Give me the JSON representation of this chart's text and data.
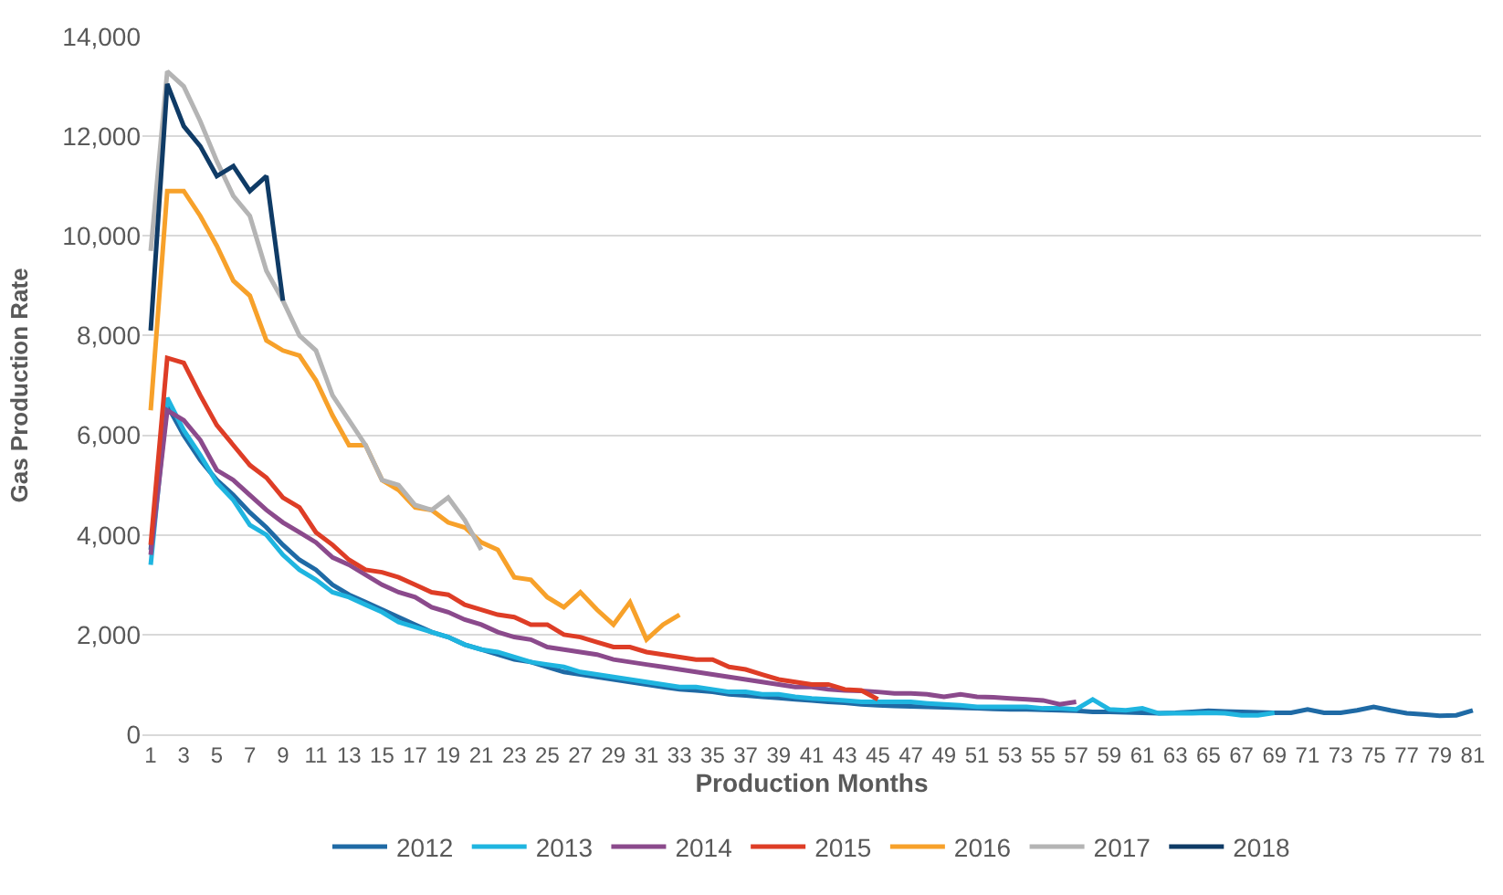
{
  "chart_data": {
    "type": "line",
    "xlabel": "Production Months",
    "ylabel": "Gas Production Rate",
    "xlim": [
      0.5,
      81.5
    ],
    "xticks": [
      1,
      3,
      5,
      7,
      9,
      11,
      13,
      15,
      17,
      19,
      21,
      23,
      25,
      27,
      29,
      31,
      33,
      35,
      37,
      39,
      41,
      43,
      45,
      47,
      49,
      51,
      53,
      55,
      57,
      59,
      61,
      63,
      65,
      67,
      69,
      71,
      73,
      75,
      77,
      79,
      81
    ],
    "ylim": [
      0,
      14000
    ],
    "yticks": [
      0,
      {
        "value": 2000,
        "label": "2,000"
      },
      {
        "value": 4000,
        "label": "4,000"
      },
      {
        "value": 6000,
        "label": "6,000"
      },
      {
        "value": 8000,
        "label": "8,000"
      },
      {
        "value": 10000,
        "label": "10,000"
      },
      {
        "value": 12000,
        "label": "12,000"
      },
      {
        "value": 14000,
        "label": "14,000"
      }
    ],
    "grid": "y",
    "legend": "bottom",
    "marker": "none",
    "line_style": "solid",
    "series": [
      {
        "name": "2012",
        "color": "#1f6aa5",
        "x": [
          1,
          2,
          3,
          4,
          5,
          6,
          7,
          8,
          9,
          10,
          11,
          12,
          13,
          14,
          15,
          16,
          17,
          18,
          19,
          20,
          21,
          22,
          23,
          24,
          25,
          26,
          27,
          28,
          29,
          30,
          31,
          32,
          33,
          34,
          35,
          36,
          37,
          38,
          39,
          40,
          41,
          42,
          43,
          44,
          45,
          46,
          47,
          48,
          49,
          50,
          51,
          52,
          53,
          54,
          55,
          56,
          57,
          58,
          59,
          60,
          61,
          62,
          63,
          64,
          65,
          66,
          67,
          68,
          69,
          70,
          71,
          72,
          73,
          74,
          75,
          76,
          77,
          78,
          79,
          80,
          81
        ],
        "values": [
          3700,
          6600,
          6000,
          5500,
          5100,
          4800,
          4450,
          4150,
          3800,
          3500,
          3300,
          3000,
          2800,
          2650,
          2500,
          2350,
          2200,
          2050,
          1950,
          1800,
          1700,
          1600,
          1500,
          1450,
          1350,
          1250,
          1200,
          1150,
          1100,
          1050,
          1000,
          950,
          900,
          880,
          850,
          800,
          780,
          750,
          730,
          700,
          680,
          650,
          630,
          600,
          580,
          570,
          560,
          550,
          540,
          530,
          520,
          510,
          500,
          500,
          490,
          480,
          470,
          450,
          450,
          440,
          430,
          420,
          430,
          450,
          470,
          460,
          450,
          440,
          430,
          430,
          500,
          430,
          430,
          480,
          550,
          480,
          420,
          400,
          370,
          380,
          480
        ]
      },
      {
        "name": "2013",
        "color": "#1fb5e0",
        "x": [
          1,
          2,
          3,
          4,
          5,
          6,
          7,
          8,
          9,
          10,
          11,
          12,
          13,
          14,
          15,
          16,
          17,
          18,
          19,
          20,
          21,
          22,
          23,
          24,
          25,
          26,
          27,
          28,
          29,
          30,
          31,
          32,
          33,
          34,
          35,
          36,
          37,
          38,
          39,
          40,
          41,
          42,
          43,
          44,
          45,
          46,
          47,
          48,
          49,
          50,
          51,
          52,
          53,
          54,
          55,
          56,
          57,
          58,
          59,
          60,
          61,
          62,
          63,
          64,
          65,
          66,
          67,
          68,
          69
        ],
        "values": [
          3400,
          6750,
          6100,
          5600,
          5050,
          4700,
          4200,
          4000,
          3600,
          3300,
          3100,
          2850,
          2750,
          2600,
          2450,
          2250,
          2150,
          2050,
          1950,
          1800,
          1700,
          1650,
          1550,
          1450,
          1400,
          1350,
          1250,
          1200,
          1150,
          1100,
          1050,
          1000,
          950,
          950,
          900,
          850,
          850,
          800,
          800,
          750,
          720,
          700,
          680,
          650,
          650,
          650,
          650,
          620,
          600,
          580,
          550,
          550,
          550,
          550,
          520,
          520,
          500,
          700,
          500,
          480,
          520,
          420,
          420,
          420,
          430,
          420,
          380,
          380,
          430
        ]
      },
      {
        "name": "2014",
        "color": "#8b4a8c",
        "x": [
          1,
          2,
          3,
          4,
          5,
          6,
          7,
          8,
          9,
          10,
          11,
          12,
          13,
          14,
          15,
          16,
          17,
          18,
          19,
          20,
          21,
          22,
          23,
          24,
          25,
          26,
          27,
          28,
          29,
          30,
          31,
          32,
          33,
          34,
          35,
          36,
          37,
          38,
          39,
          40,
          41,
          42,
          43,
          44,
          45,
          46,
          47,
          48,
          49,
          50,
          51,
          52,
          53,
          54,
          55,
          56,
          57
        ],
        "values": [
          3600,
          6500,
          6300,
          5900,
          5300,
          5100,
          4800,
          4500,
          4250,
          4050,
          3850,
          3550,
          3400,
          3200,
          3000,
          2850,
          2750,
          2550,
          2450,
          2300,
          2200,
          2050,
          1950,
          1900,
          1750,
          1700,
          1650,
          1600,
          1500,
          1450,
          1400,
          1350,
          1300,
          1250,
          1200,
          1150,
          1100,
          1050,
          1000,
          950,
          950,
          900,
          880,
          870,
          850,
          820,
          820,
          800,
          750,
          800,
          750,
          740,
          720,
          700,
          680,
          600,
          650
        ]
      },
      {
        "name": "2015",
        "color": "#de3d26",
        "x": [
          1,
          2,
          3,
          4,
          5,
          6,
          7,
          8,
          9,
          10,
          11,
          12,
          13,
          14,
          15,
          16,
          17,
          18,
          19,
          20,
          21,
          22,
          23,
          24,
          25,
          26,
          27,
          28,
          29,
          30,
          31,
          32,
          33,
          34,
          35,
          36,
          37,
          38,
          39,
          40,
          41,
          42,
          43,
          44,
          45
        ],
        "values": [
          3800,
          7550,
          7450,
          6800,
          6200,
          5800,
          5400,
          5150,
          4750,
          4550,
          4050,
          3800,
          3500,
          3300,
          3250,
          3150,
          3000,
          2850,
          2800,
          2600,
          2500,
          2400,
          2350,
          2200,
          2200,
          2000,
          1950,
          1850,
          1750,
          1750,
          1650,
          1600,
          1550,
          1500,
          1500,
          1350,
          1300,
          1200,
          1100,
          1050,
          1000,
          1000,
          900,
          880,
          700
        ]
      },
      {
        "name": "2016",
        "color": "#f7a12a",
        "x": [
          1,
          2,
          3,
          4,
          5,
          6,
          7,
          8,
          9,
          10,
          11,
          12,
          13,
          14,
          15,
          16,
          17,
          18,
          19,
          20,
          21,
          22,
          23,
          24,
          25,
          26,
          27,
          28,
          29,
          30,
          31,
          32,
          33
        ],
        "values": [
          6500,
          10900,
          10900,
          10400,
          9800,
          9100,
          8800,
          7900,
          7700,
          7600,
          7100,
          6400,
          5800,
          5800,
          5100,
          4900,
          4550,
          4500,
          4250,
          4150,
          3850,
          3700,
          3150,
          3100,
          2750,
          2550,
          2850,
          2500,
          2200,
          2650,
          1900,
          2200,
          2400
        ]
      },
      {
        "name": "2017",
        "color": "#b4b4b4",
        "x": [
          1,
          2,
          3,
          4,
          5,
          6,
          7,
          8,
          9,
          10,
          11,
          12,
          13,
          14,
          15,
          16,
          17,
          18,
          19,
          20,
          21
        ],
        "values": [
          9700,
          13300,
          13000,
          12300,
          11500,
          10800,
          10400,
          9300,
          8700,
          8000,
          7700,
          6800,
          6300,
          5800,
          5100,
          5000,
          4600,
          4500,
          4750,
          4300,
          3700
        ]
      },
      {
        "name": "2018",
        "color": "#0f3b66",
        "x": [
          1,
          2,
          3,
          4,
          5,
          6,
          7,
          8,
          9
        ],
        "values": [
          8100,
          13050,
          12200,
          11800,
          11200,
          11400,
          10900,
          11200,
          8700
        ]
      }
    ]
  }
}
